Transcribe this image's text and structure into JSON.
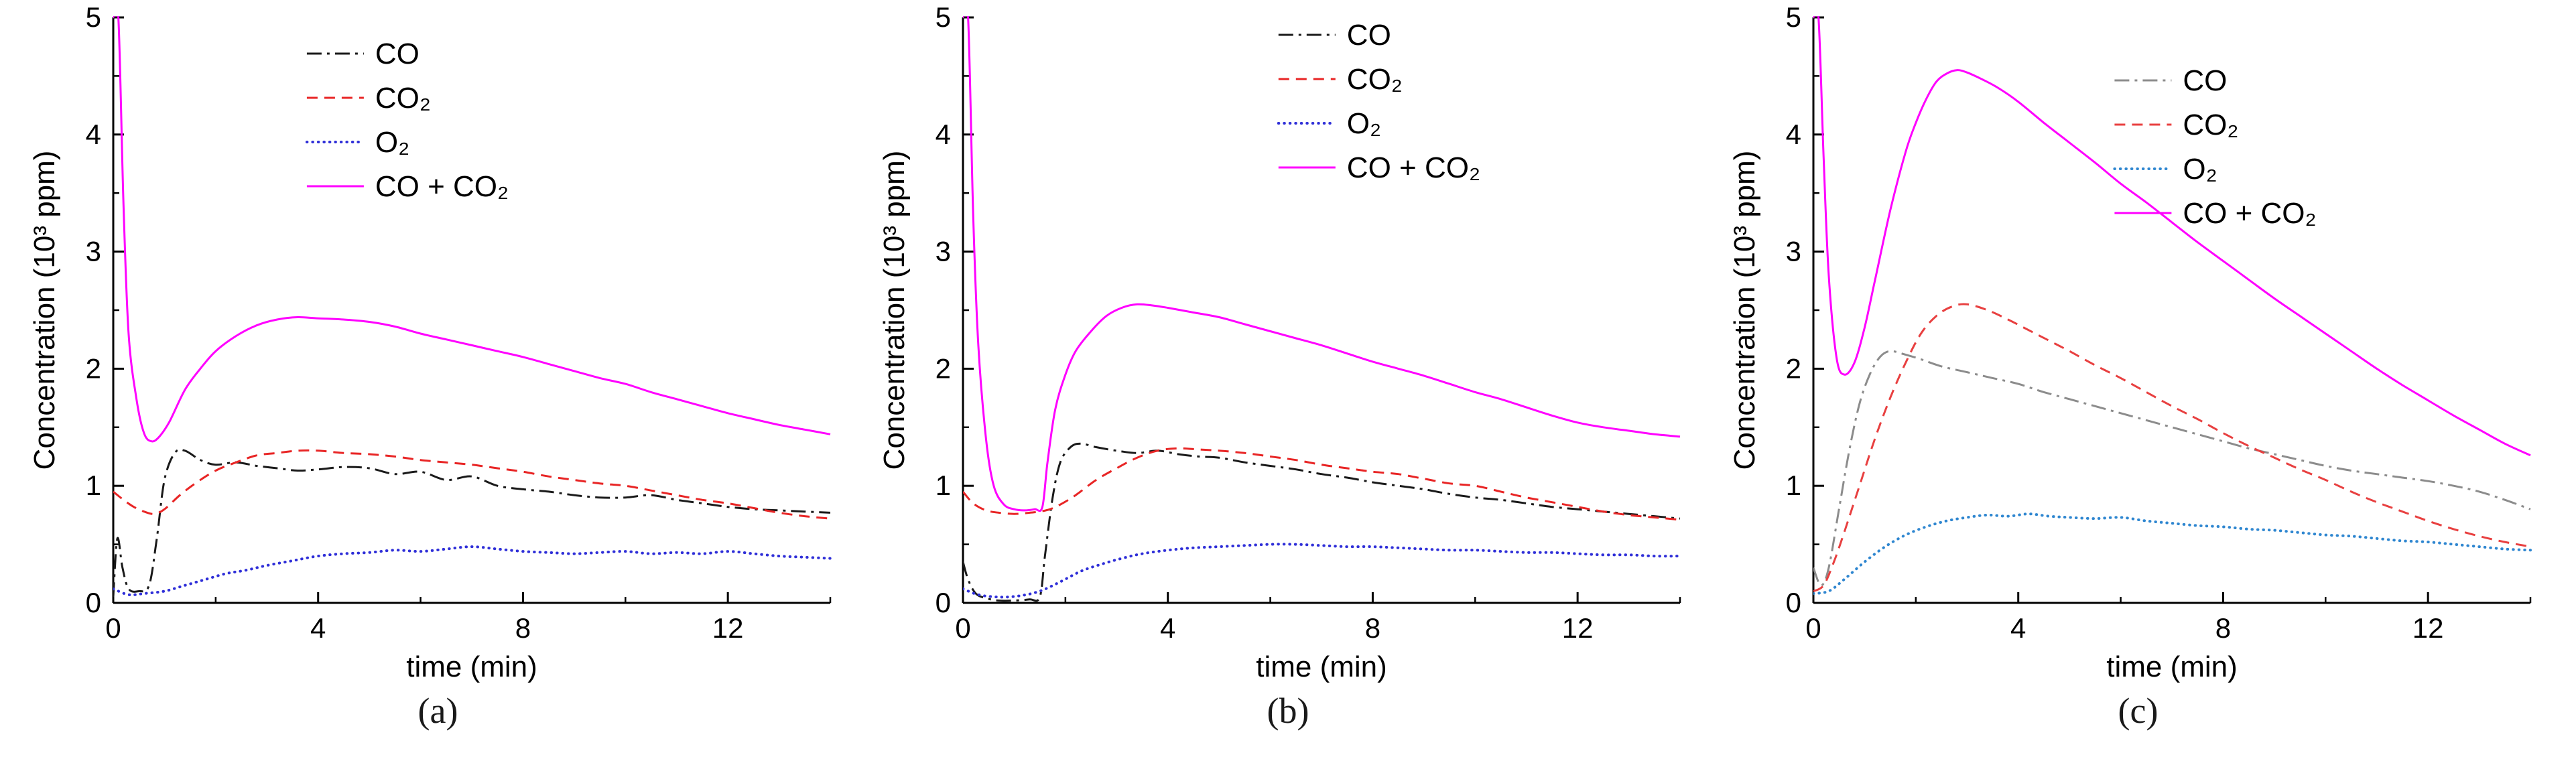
{
  "figure": {
    "panel_labels": [
      "(a)",
      "(b)",
      "(c)"
    ]
  },
  "chart_data": [
    {
      "type": "line",
      "panel_label": "(a)",
      "title": "",
      "xlabel": "time (min)",
      "ylabel": "Concentration (10³ ppm)",
      "xlim": [
        0,
        14
      ],
      "ylim": [
        0,
        5
      ],
      "xticks": [
        0,
        4,
        8,
        12
      ],
      "xminorticks": [
        2,
        6,
        10,
        14
      ],
      "yticks": [
        0,
        1,
        2,
        3,
        4,
        5
      ],
      "grid": false,
      "legend_position": "top-center",
      "legend_x_frac": 0.27,
      "legend_y": 72,
      "series": [
        {
          "name": "CO",
          "color": "#1a1a1a",
          "style": "dashdot",
          "x": [
            0,
            0.08,
            0.18,
            0.3,
            0.5,
            0.7,
            0.85,
            1.0,
            1.2,
            1.4,
            1.7,
            2.0,
            2.4,
            2.8,
            3.2,
            3.6,
            4.0,
            4.5,
            5.0,
            5.5,
            6.0,
            6.5,
            7.0,
            7.5,
            8.0,
            8.5,
            9.0,
            9.5,
            10.0,
            10.5,
            11.0,
            11.5,
            12.0,
            12.5,
            13.0,
            13.5,
            14.0
          ],
          "y": [
            0.05,
            0.55,
            0.3,
            0.12,
            0.1,
            0.15,
            0.55,
            1.05,
            1.28,
            1.3,
            1.22,
            1.18,
            1.2,
            1.17,
            1.15,
            1.13,
            1.14,
            1.16,
            1.15,
            1.1,
            1.12,
            1.05,
            1.08,
            1.0,
            0.97,
            0.95,
            0.92,
            0.9,
            0.9,
            0.92,
            0.88,
            0.85,
            0.82,
            0.8,
            0.79,
            0.78,
            0.77
          ]
        },
        {
          "name": "CO₂",
          "color": "#e82525",
          "style": "dashed",
          "x": [
            0,
            0.2,
            0.4,
            0.6,
            0.8,
            1.0,
            1.3,
            1.6,
            2.0,
            2.4,
            2.8,
            3.2,
            3.6,
            4.0,
            4.5,
            5.0,
            5.5,
            6.0,
            6.5,
            7.0,
            7.5,
            8.0,
            8.5,
            9.0,
            9.5,
            10.0,
            10.5,
            11.0,
            11.5,
            12.0,
            12.5,
            13.0,
            13.5,
            14.0
          ],
          "y": [
            0.95,
            0.88,
            0.82,
            0.78,
            0.76,
            0.8,
            0.92,
            1.02,
            1.13,
            1.2,
            1.26,
            1.28,
            1.3,
            1.3,
            1.28,
            1.27,
            1.25,
            1.22,
            1.2,
            1.18,
            1.15,
            1.12,
            1.08,
            1.05,
            1.02,
            1.0,
            0.96,
            0.92,
            0.88,
            0.85,
            0.81,
            0.77,
            0.74,
            0.72
          ]
        },
        {
          "name": "O₂",
          "color": "#2f2fd8",
          "style": "dotted",
          "x": [
            0,
            0.3,
            0.6,
            1.0,
            1.4,
            1.8,
            2.2,
            2.6,
            3.0,
            3.5,
            4.0,
            4.5,
            5.0,
            5.5,
            6.0,
            6.5,
            7.0,
            7.5,
            8.0,
            8.5,
            9.0,
            9.5,
            10.0,
            10.5,
            11.0,
            11.5,
            12.0,
            12.5,
            13.0,
            13.5,
            14.0
          ],
          "y": [
            0.12,
            0.07,
            0.08,
            0.1,
            0.15,
            0.2,
            0.25,
            0.28,
            0.32,
            0.36,
            0.4,
            0.42,
            0.43,
            0.45,
            0.44,
            0.46,
            0.48,
            0.46,
            0.44,
            0.43,
            0.42,
            0.43,
            0.44,
            0.42,
            0.43,
            0.42,
            0.44,
            0.42,
            0.4,
            0.39,
            0.38
          ]
        },
        {
          "name": "CO + CO₂",
          "color": "#ff00ff",
          "style": "solid",
          "x": [
            0,
            0.1,
            0.2,
            0.3,
            0.45,
            0.6,
            0.75,
            0.9,
            1.1,
            1.4,
            1.7,
            2.0,
            2.4,
            2.8,
            3.2,
            3.6,
            4.0,
            4.5,
            5.0,
            5.5,
            6.0,
            6.5,
            7.0,
            7.5,
            8.0,
            8.5,
            9.0,
            9.5,
            10.0,
            10.5,
            11.0,
            11.5,
            12.0,
            12.5,
            13.0,
            13.5,
            14.0
          ],
          "y": [
            5.0,
            5.0,
            3.4,
            2.3,
            1.75,
            1.45,
            1.38,
            1.42,
            1.55,
            1.82,
            2.0,
            2.15,
            2.28,
            2.37,
            2.42,
            2.44,
            2.43,
            2.42,
            2.4,
            2.36,
            2.3,
            2.25,
            2.2,
            2.15,
            2.1,
            2.04,
            1.98,
            1.92,
            1.87,
            1.8,
            1.74,
            1.68,
            1.62,
            1.57,
            1.52,
            1.48,
            1.44
          ]
        }
      ]
    },
    {
      "type": "line",
      "panel_label": "(b)",
      "title": "",
      "xlabel": "time (min)",
      "ylabel": "Concentration (10³ ppm)",
      "xlim": [
        0,
        14
      ],
      "ylim": [
        0,
        5
      ],
      "xticks": [
        0,
        4,
        8,
        12
      ],
      "xminorticks": [
        2,
        6,
        10,
        14
      ],
      "yticks": [
        0,
        1,
        2,
        3,
        4,
        5
      ],
      "grid": false,
      "legend_position": "top-center",
      "legend_x_frac": 0.44,
      "legend_y": 44,
      "series": [
        {
          "name": "CO",
          "color": "#1a1a1a",
          "style": "dashdot",
          "x": [
            0,
            0.1,
            0.25,
            0.45,
            0.7,
            1.0,
            1.3,
            1.5,
            1.6,
            1.75,
            1.9,
            2.1,
            2.3,
            2.6,
            3.0,
            3.4,
            3.8,
            4.2,
            4.6,
            5.0,
            5.5,
            6.0,
            6.5,
            7.0,
            7.5,
            8.0,
            8.5,
            9.0,
            9.5,
            10.0,
            10.5,
            11.0,
            11.5,
            12.0,
            12.5,
            13.0,
            13.5,
            14.0
          ],
          "y": [
            0.35,
            0.2,
            0.08,
            0.04,
            0.02,
            0.02,
            0.03,
            0.05,
            0.4,
            0.9,
            1.2,
            1.33,
            1.36,
            1.33,
            1.3,
            1.28,
            1.3,
            1.27,
            1.25,
            1.24,
            1.2,
            1.17,
            1.14,
            1.1,
            1.07,
            1.03,
            1.0,
            0.97,
            0.93,
            0.9,
            0.88,
            0.85,
            0.82,
            0.8,
            0.78,
            0.76,
            0.74,
            0.72
          ]
        },
        {
          "name": "CO₂",
          "color": "#e82525",
          "style": "dashed",
          "x": [
            0,
            0.2,
            0.45,
            0.7,
            1.0,
            1.3,
            1.5,
            1.7,
            1.9,
            2.2,
            2.6,
            3.0,
            3.4,
            3.8,
            4.2,
            4.6,
            5.0,
            5.5,
            6.0,
            6.5,
            7.0,
            7.5,
            8.0,
            8.5,
            9.0,
            9.5,
            10.0,
            10.5,
            11.0,
            11.5,
            12.0,
            12.5,
            13.0,
            13.5,
            14.0
          ],
          "y": [
            0.95,
            0.85,
            0.79,
            0.77,
            0.76,
            0.77,
            0.78,
            0.8,
            0.84,
            0.92,
            1.05,
            1.15,
            1.24,
            1.3,
            1.32,
            1.31,
            1.3,
            1.28,
            1.25,
            1.22,
            1.18,
            1.15,
            1.12,
            1.1,
            1.06,
            1.02,
            1.0,
            0.95,
            0.9,
            0.86,
            0.82,
            0.78,
            0.75,
            0.73,
            0.71
          ]
        },
        {
          "name": "O₂",
          "color": "#2f2fd8",
          "style": "dotted",
          "x": [
            0,
            0.3,
            0.7,
            1.1,
            1.5,
            1.9,
            2.3,
            2.7,
            3.1,
            3.5,
            4.0,
            4.5,
            5.0,
            5.5,
            6.0,
            6.5,
            7.0,
            7.5,
            8.0,
            8.5,
            9.0,
            9.5,
            10.0,
            10.5,
            11.0,
            11.5,
            12.0,
            12.5,
            13.0,
            13.5,
            14.0
          ],
          "y": [
            0.12,
            0.07,
            0.05,
            0.06,
            0.1,
            0.18,
            0.27,
            0.33,
            0.38,
            0.42,
            0.45,
            0.47,
            0.48,
            0.49,
            0.5,
            0.5,
            0.49,
            0.48,
            0.48,
            0.47,
            0.46,
            0.45,
            0.45,
            0.44,
            0.43,
            0.43,
            0.42,
            0.41,
            0.41,
            0.4,
            0.4
          ]
        },
        {
          "name": "CO + CO₂",
          "color": "#ff00ff",
          "style": "solid",
          "x": [
            0,
            0.1,
            0.2,
            0.3,
            0.45,
            0.6,
            0.8,
            1.0,
            1.2,
            1.4,
            1.55,
            1.65,
            1.8,
            2.0,
            2.2,
            2.5,
            2.8,
            3.1,
            3.4,
            3.7,
            4.0,
            4.5,
            5.0,
            5.5,
            6.0,
            6.5,
            7.0,
            7.5,
            8.0,
            8.5,
            9.0,
            9.5,
            10.0,
            10.5,
            11.0,
            11.5,
            12.0,
            12.5,
            13.0,
            13.5,
            14.0
          ],
          "y": [
            5.0,
            5.0,
            3.3,
            2.2,
            1.4,
            1.0,
            0.84,
            0.8,
            0.79,
            0.8,
            0.82,
            1.2,
            1.65,
            1.95,
            2.15,
            2.32,
            2.45,
            2.52,
            2.55,
            2.54,
            2.52,
            2.48,
            2.44,
            2.38,
            2.32,
            2.26,
            2.2,
            2.13,
            2.06,
            2.0,
            1.94,
            1.87,
            1.8,
            1.74,
            1.67,
            1.6,
            1.54,
            1.5,
            1.47,
            1.44,
            1.42
          ]
        }
      ]
    },
    {
      "type": "line",
      "panel_label": "(c)",
      "title": "",
      "xlabel": "time (min)",
      "ylabel": "Concentration (10³ ppm)",
      "xlim": [
        0,
        14
      ],
      "ylim": [
        0,
        5
      ],
      "xticks": [
        0,
        4,
        8,
        12
      ],
      "xminorticks": [
        2,
        6,
        10,
        14
      ],
      "yticks": [
        0,
        1,
        2,
        3,
        4,
        5
      ],
      "grid": false,
      "legend_position": "top-center",
      "legend_x_frac": 0.42,
      "legend_y": 112,
      "series": [
        {
          "name": "CO",
          "color": "#8c8c8c",
          "style": "dashdot",
          "x": [
            0,
            0.15,
            0.3,
            0.5,
            0.7,
            0.9,
            1.1,
            1.3,
            1.5,
            1.8,
            2.1,
            2.5,
            3.0,
            3.5,
            4.0,
            4.5,
            5.0,
            5.5,
            6.0,
            6.5,
            7.0,
            7.5,
            8.0,
            8.5,
            9.0,
            9.5,
            10.0,
            10.5,
            11.0,
            11.5,
            12.0,
            12.5,
            13.0,
            13.5,
            14.0
          ],
          "y": [
            0.3,
            0.15,
            0.3,
            0.8,
            1.3,
            1.7,
            1.95,
            2.1,
            2.15,
            2.12,
            2.08,
            2.02,
            1.97,
            1.92,
            1.87,
            1.8,
            1.74,
            1.68,
            1.62,
            1.56,
            1.5,
            1.44,
            1.38,
            1.32,
            1.27,
            1.22,
            1.17,
            1.13,
            1.1,
            1.07,
            1.04,
            1.0,
            0.95,
            0.88,
            0.8
          ]
        },
        {
          "name": "CO₂",
          "color": "#e84040",
          "style": "dashed",
          "x": [
            0,
            0.2,
            0.4,
            0.6,
            0.9,
            1.2,
            1.5,
            1.8,
            2.1,
            2.4,
            2.7,
            3.0,
            3.4,
            3.8,
            4.2,
            4.6,
            5.0,
            5.5,
            6.0,
            6.5,
            7.0,
            7.5,
            8.0,
            8.5,
            9.0,
            9.5,
            10.0,
            10.5,
            11.0,
            11.5,
            12.0,
            12.5,
            13.0,
            13.5,
            14.0
          ],
          "y": [
            0.1,
            0.15,
            0.35,
            0.6,
            1.0,
            1.4,
            1.75,
            2.05,
            2.3,
            2.45,
            2.53,
            2.55,
            2.5,
            2.42,
            2.33,
            2.24,
            2.15,
            2.03,
            1.92,
            1.8,
            1.68,
            1.57,
            1.45,
            1.34,
            1.24,
            1.14,
            1.05,
            0.95,
            0.86,
            0.78,
            0.7,
            0.63,
            0.57,
            0.52,
            0.48
          ]
        },
        {
          "name": "O₂",
          "color": "#2e86d0",
          "style": "dotted",
          "x": [
            0,
            0.3,
            0.6,
            1.0,
            1.4,
            1.8,
            2.2,
            2.6,
            3.0,
            3.4,
            3.8,
            4.2,
            4.6,
            5.0,
            5.5,
            6.0,
            6.5,
            7.0,
            7.5,
            8.0,
            8.5,
            9.0,
            9.5,
            10.0,
            10.5,
            11.0,
            11.5,
            12.0,
            12.5,
            13.0,
            13.5,
            14.0
          ],
          "y": [
            0.08,
            0.1,
            0.2,
            0.35,
            0.48,
            0.58,
            0.65,
            0.7,
            0.73,
            0.75,
            0.74,
            0.76,
            0.74,
            0.73,
            0.72,
            0.73,
            0.7,
            0.68,
            0.66,
            0.65,
            0.63,
            0.62,
            0.6,
            0.58,
            0.57,
            0.55,
            0.53,
            0.52,
            0.5,
            0.48,
            0.46,
            0.45
          ]
        },
        {
          "name": "CO + CO₂",
          "color": "#ff00ff",
          "style": "solid",
          "x": [
            0,
            0.1,
            0.2,
            0.3,
            0.45,
            0.6,
            0.8,
            1.0,
            1.2,
            1.5,
            1.8,
            2.0,
            2.2,
            2.4,
            2.6,
            2.8,
            3.0,
            3.3,
            3.6,
            4.0,
            4.5,
            5.0,
            5.5,
            6.0,
            6.5,
            7.0,
            7.5,
            8.0,
            8.5,
            9.0,
            9.5,
            10.0,
            10.5,
            11.0,
            11.5,
            12.0,
            12.5,
            13.0,
            13.5,
            14.0
          ],
          "y": [
            5.0,
            5.0,
            3.8,
            2.8,
            2.1,
            1.95,
            2.05,
            2.35,
            2.75,
            3.35,
            3.85,
            4.1,
            4.3,
            4.45,
            4.52,
            4.55,
            4.53,
            4.47,
            4.4,
            4.28,
            4.1,
            3.93,
            3.76,
            3.58,
            3.42,
            3.25,
            3.08,
            2.92,
            2.76,
            2.6,
            2.45,
            2.3,
            2.15,
            2.0,
            1.86,
            1.73,
            1.6,
            1.48,
            1.36,
            1.26
          ]
        }
      ]
    }
  ]
}
